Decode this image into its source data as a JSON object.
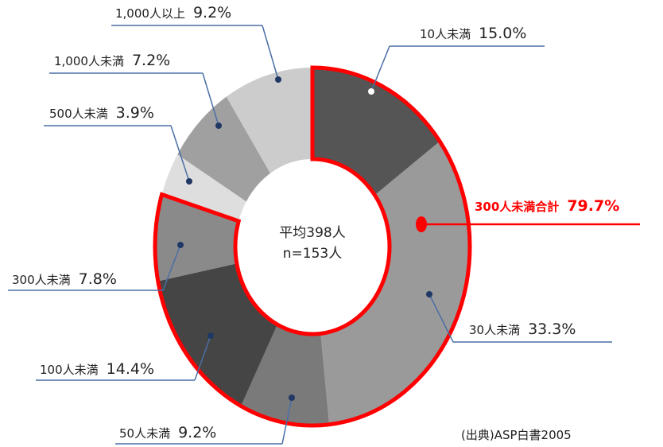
{
  "chart_data": {
    "type": "donut",
    "categories": [
      "10人未満",
      "30人未満",
      "50人未満",
      "100人未満",
      "300人未満",
      "500人未満",
      "1,000人未満",
      "1,000人以上"
    ],
    "values": [
      15.0,
      33.3,
      9.2,
      14.4,
      7.8,
      3.9,
      7.2,
      9.2
    ],
    "value_labels": [
      "15.0%",
      "33.3%",
      "9.2%",
      "14.4%",
      "7.8%",
      "3.9%",
      "7.2%",
      "9.2%"
    ],
    "colors": [
      "#555555",
      "#9a9a9a",
      "#7a7a7a",
      "#454545",
      "#8a8a8a",
      "#dedede",
      "#a0a0a0",
      "#cccccc"
    ],
    "center_text": [
      "平均398人",
      "n=153人"
    ],
    "highlight": {
      "label": "300人未満合計",
      "value": 79.7,
      "value_label": "79.7%",
      "color": "#ff0000"
    },
    "source": "(出典)ASP白書2005"
  }
}
